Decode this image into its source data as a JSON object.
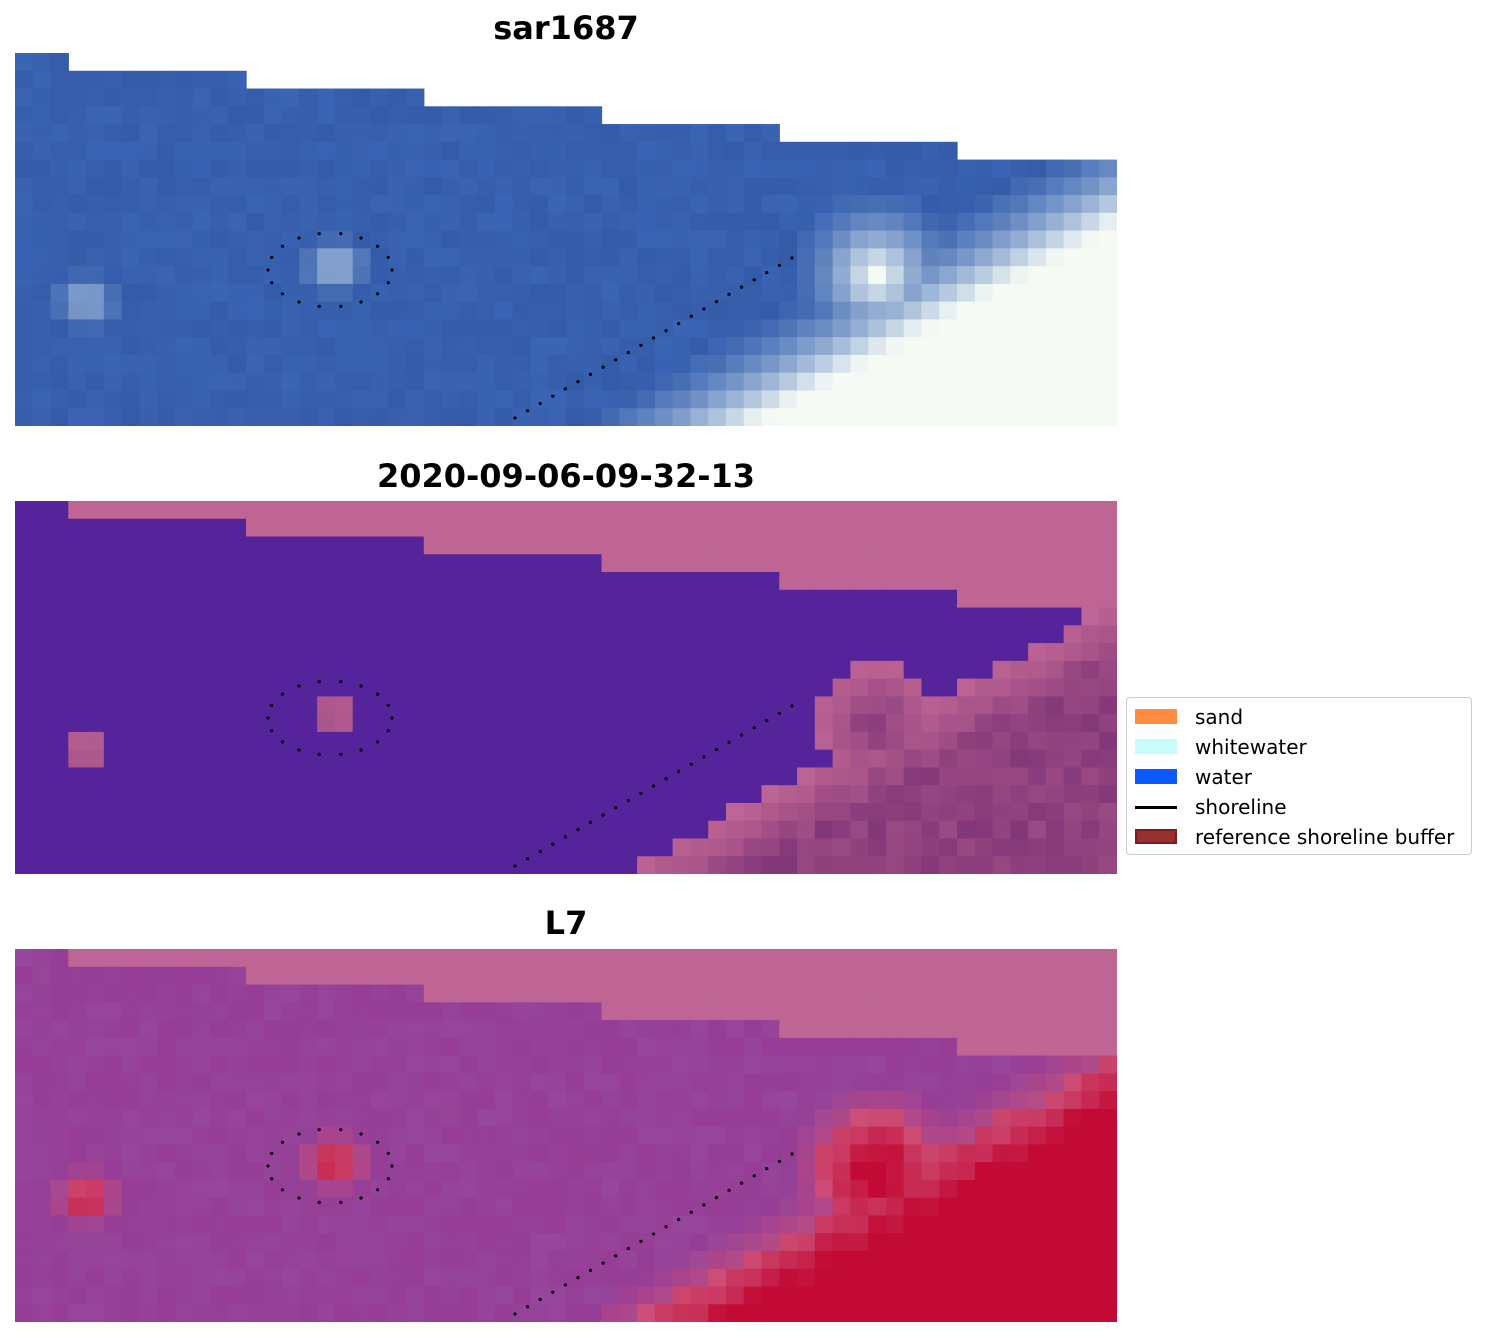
{
  "panels": [
    {
      "title": "sar1687",
      "kind": "rgb"
    },
    {
      "title": "2020-09-06-09-32-13",
      "kind": "classification"
    },
    {
      "title": "L7",
      "kind": "index"
    }
  ],
  "legend": {
    "items": [
      {
        "label": "sand",
        "color": "#ff8c3f",
        "type": "patch"
      },
      {
        "label": "whitewater",
        "color": "#c8fcfc",
        "type": "patch"
      },
      {
        "label": "water",
        "color": "#0a5aff",
        "type": "patch"
      },
      {
        "label": "shoreline",
        "color": "#000000",
        "type": "line"
      },
      {
        "label": "reference shoreline buffer",
        "color": "#9a2f2f",
        "type": "patch"
      }
    ]
  },
  "colors": {
    "nodata": "#be6594",
    "water_class": "#55239a",
    "sar_blue": "#3c6aba",
    "index_low": "#9a4b9c",
    "index_high": "#c20a34"
  }
}
